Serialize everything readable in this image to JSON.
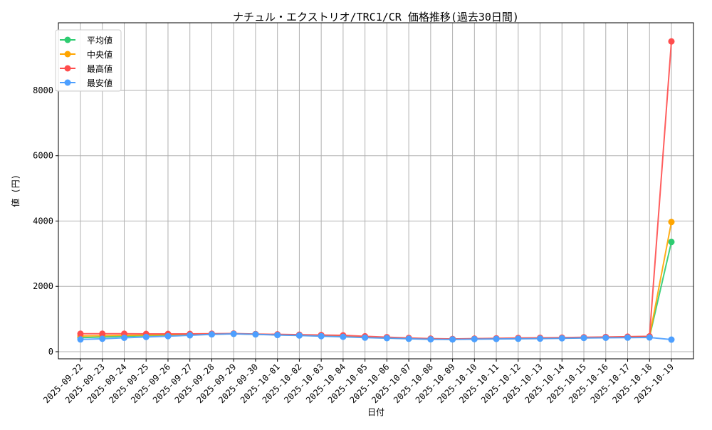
{
  "chart_data": {
    "type": "line",
    "title": "ナチュル・エクストリオ/TRC1/CR 価格推移(過去30日間)",
    "xlabel": "日付",
    "ylabel": "値 (円)",
    "ylim": [
      -218,
      10070
    ],
    "yticks": [
      0,
      2000,
      4000,
      6000,
      8000
    ],
    "grid": true,
    "legend_position": "top-left",
    "x": [
      "2025-09-22",
      "2025-09-23",
      "2025-09-24",
      "2025-09-25",
      "2025-09-26",
      "2025-09-27",
      "2025-09-28",
      "2025-09-29",
      "2025-09-30",
      "2025-10-01",
      "2025-10-02",
      "2025-10-03",
      "2025-10-04",
      "2025-10-05",
      "2025-10-06",
      "2025-10-07",
      "2025-10-08",
      "2025-10-09",
      "2025-10-10",
      "2025-10-11",
      "2025-10-12",
      "2025-10-13",
      "2025-10-14",
      "2025-10-15",
      "2025-10-16",
      "2025-10-17",
      "2025-10-18",
      "2025-10-19"
    ],
    "series": [
      {
        "name": "平均値",
        "color": "#2ecc71",
        "values": [
          430,
          450,
          470,
          490,
          505,
          520,
          535,
          550,
          535,
          515,
          500,
          485,
          465,
          440,
          420,
          400,
          385,
          380,
          390,
          395,
          400,
          410,
          415,
          425,
          435,
          445,
          455,
          3360
        ]
      },
      {
        "name": "中央値",
        "color": "#ffa500",
        "values": [
          480,
          490,
          500,
          510,
          520,
          530,
          540,
          550,
          535,
          520,
          505,
          490,
          470,
          445,
          425,
          405,
          390,
          385,
          395,
          400,
          405,
          410,
          420,
          430,
          440,
          450,
          460,
          3970
        ]
      },
      {
        "name": "最高値",
        "color": "#ff4d4d",
        "values": [
          550,
          550,
          550,
          545,
          545,
          545,
          550,
          555,
          540,
          530,
          520,
          510,
          500,
          470,
          445,
          420,
          400,
          390,
          400,
          410,
          420,
          425,
          430,
          440,
          450,
          460,
          470,
          9500
        ]
      },
      {
        "name": "最安値",
        "color": "#4d9fff",
        "values": [
          375,
          395,
          425,
          450,
          475,
          500,
          530,
          545,
          530,
          510,
          495,
          475,
          455,
          430,
          415,
          395,
          380,
          375,
          385,
          390,
          395,
          400,
          410,
          420,
          425,
          430,
          435,
          370
        ]
      }
    ]
  }
}
